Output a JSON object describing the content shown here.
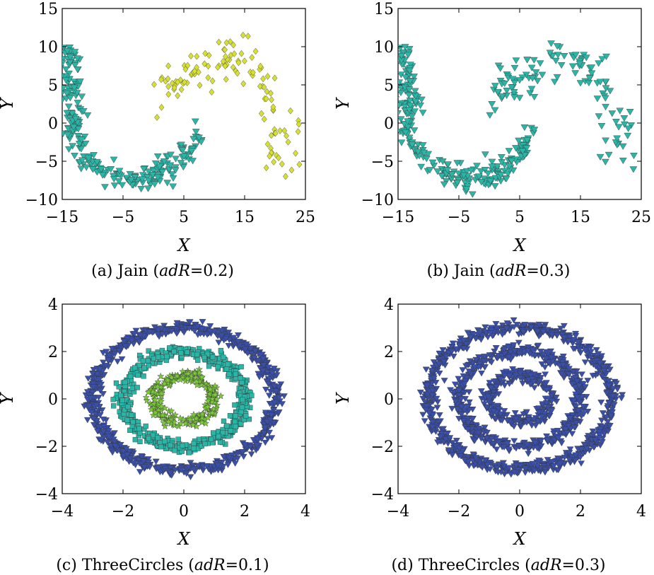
{
  "chart_data": [
    {
      "type": "scatter",
      "panel": "a",
      "caption": "(a) Jain (adR=0.2)",
      "caption_prefix": "(a) Jain (",
      "caption_var": "adR",
      "caption_value": "=0.2)",
      "xlabel": "X",
      "ylabel": "Y",
      "xlim": [
        -15,
        25
      ],
      "ylim": [
        -10,
        15
      ],
      "xticks": [
        "−15",
        "−5",
        "5",
        "15",
        "25"
      ],
      "xtick_values": [
        -15,
        -5,
        5,
        15,
        25
      ],
      "yticks": [
        "−10",
        "−5",
        "0",
        "5",
        "10",
        "15"
      ],
      "ytick_values": [
        -10,
        -5,
        0,
        5,
        10,
        15
      ],
      "grid": false,
      "shape": "jain",
      "series": [
        {
          "color": "#2bb5a6",
          "marker": "triangle-down",
          "cluster": "lower-arc"
        },
        {
          "color": "#d6e033",
          "marker": "diamond",
          "cluster": "upper-arc-with-tail"
        }
      ]
    },
    {
      "type": "scatter",
      "panel": "b",
      "caption": "(b) Jain (adR=0.3)",
      "caption_prefix": "(b) Jain (",
      "caption_var": "adR",
      "caption_value": "=0.3)",
      "xlabel": "X",
      "ylabel": "Y",
      "xlim": [
        -15,
        25
      ],
      "ylim": [
        -10,
        15
      ],
      "xticks": [
        "−15",
        "−5",
        "5",
        "15",
        "25"
      ],
      "xtick_values": [
        -15,
        -5,
        5,
        15,
        25
      ],
      "yticks": [
        "−10",
        "−5",
        "0",
        "5",
        "10",
        "15"
      ],
      "ytick_values": [
        -10,
        -5,
        0,
        5,
        10,
        15
      ],
      "grid": false,
      "shape": "jain",
      "series": [
        {
          "color": "#2bb5a6",
          "marker": "triangle-down",
          "cluster": "all-points"
        }
      ]
    },
    {
      "type": "scatter",
      "panel": "c",
      "caption": "(c) ThreeCircles (adR=0.1)",
      "caption_prefix": "(c) ThreeCircles (",
      "caption_var": "adR",
      "caption_value": "=0.1)",
      "xlabel": "X",
      "ylabel": "Y",
      "xlim": [
        -4,
        4
      ],
      "ylim": [
        -4,
        4
      ],
      "xticks": [
        "−4",
        "−2",
        "0",
        "2",
        "4"
      ],
      "xtick_values": [
        -4,
        -2,
        0,
        2,
        4
      ],
      "yticks": [
        "−4",
        "−2",
        "0",
        "2",
        "4"
      ],
      "ytick_values": [
        -4,
        -2,
        0,
        2,
        4
      ],
      "grid": false,
      "shape": "rings",
      "series": [
        {
          "color": "#3a4fa8",
          "marker": "triangle-down",
          "ring_radius": 3.0
        },
        {
          "color": "#2bb5a6",
          "marker": "square",
          "ring_radius": 2.0
        },
        {
          "color": "#7cc83c",
          "marker": "star",
          "ring_radius": 1.0
        }
      ]
    },
    {
      "type": "scatter",
      "panel": "d",
      "caption": "(d) ThreeCircles (adR=0.3)",
      "caption_prefix": "(d) ThreeCircles (",
      "caption_var": "adR",
      "caption_value": "=0.3)",
      "xlabel": "X",
      "ylabel": "Y",
      "xlim": [
        -4,
        4
      ],
      "ylim": [
        -4,
        4
      ],
      "xticks": [
        "−4",
        "−2",
        "0",
        "2",
        "4"
      ],
      "xtick_values": [
        -4,
        -2,
        0,
        2,
        4
      ],
      "yticks": [
        "−4",
        "−2",
        "0",
        "2",
        "4"
      ],
      "ytick_values": [
        -4,
        -2,
        0,
        2,
        4
      ],
      "grid": false,
      "shape": "rings",
      "series": [
        {
          "color": "#3a4fa8",
          "marker": "triangle-down",
          "ring_radius": 3.0
        },
        {
          "color": "#3a4fa8",
          "marker": "triangle-down",
          "ring_radius": 2.0
        },
        {
          "color": "#3a4fa8",
          "marker": "triangle-down",
          "ring_radius": 1.0
        }
      ]
    }
  ]
}
